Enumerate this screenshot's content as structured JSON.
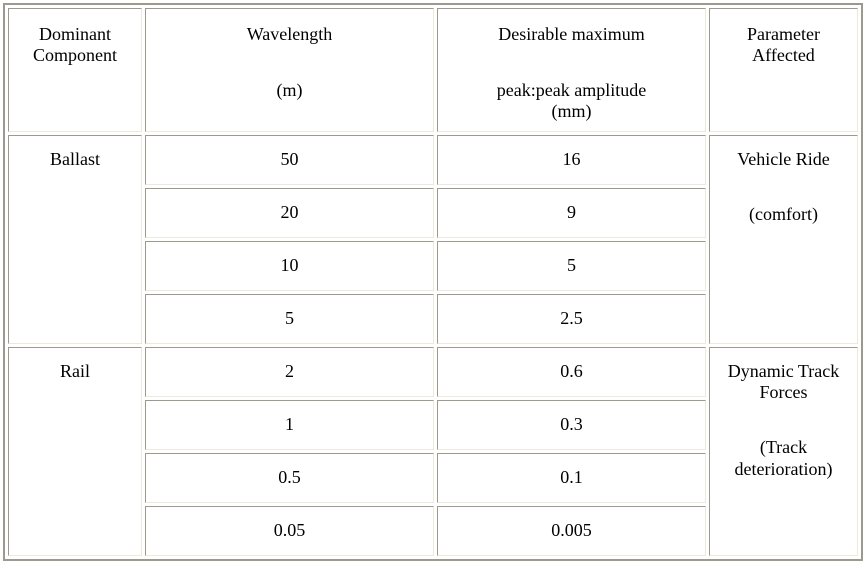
{
  "table": {
    "header": {
      "dominant_component": "Dominant Component",
      "wavelength_title": "Wavelength",
      "wavelength_unit": "(m)",
      "amplitude_title": "Desirable maximum",
      "amplitude_line2": "peak:peak amplitude",
      "amplitude_line3": "(mm)",
      "parameter_affected": "Parameter Affected"
    },
    "groups": [
      {
        "component": "Ballast",
        "parameter_line1": "Vehicle Ride",
        "parameter_line2": "(comfort)",
        "rows": [
          {
            "wavelength": "50",
            "amplitude": "16"
          },
          {
            "wavelength": "20",
            "amplitude": "9"
          },
          {
            "wavelength": "10",
            "amplitude": "5"
          },
          {
            "wavelength": "5",
            "amplitude": "2.5"
          }
        ]
      },
      {
        "component": "Rail",
        "parameter_line1": "Dynamic Track Forces",
        "parameter_line2": "(Track deterioration)",
        "rows": [
          {
            "wavelength": "2",
            "amplitude": "0.6"
          },
          {
            "wavelength": "1",
            "amplitude": "0.3"
          },
          {
            "wavelength": "0.5",
            "amplitude": "0.1"
          },
          {
            "wavelength": "0.05",
            "amplitude": "0.005"
          }
        ]
      }
    ],
    "colors": {
      "border_dark": "#9c9a8e",
      "border_light": "#edeadd",
      "text": "#000000",
      "background": "#ffffff"
    }
  }
}
